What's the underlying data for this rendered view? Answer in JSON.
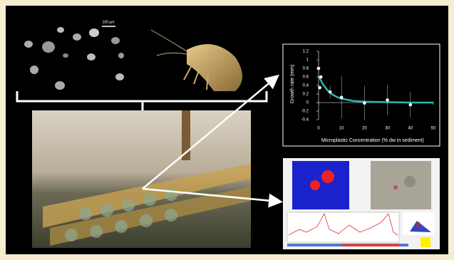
{
  "scale_bar_label": "100 µm",
  "chart_data": {
    "type": "scatter",
    "ylabel": "Growth rate (mm)",
    "xlabel": "Microplastic Concentration (% dw in sediment)",
    "xlim": [
      0,
      50
    ],
    "xticks": [
      0,
      10,
      20,
      30,
      40,
      50
    ],
    "ylim": [
      -0.4,
      1.2
    ],
    "yticks": [
      -0.4,
      -0.2,
      0,
      0.2,
      0.4,
      0.6,
      0.8,
      1,
      1.2
    ],
    "series": [
      {
        "color": "#ffffff",
        "x": [
          0,
          0.5,
          1,
          5,
          10,
          20,
          30,
          40
        ],
        "values": [
          0.8,
          0.35,
          0.6,
          0.25,
          0.12,
          -0.01,
          0.06,
          -0.05
        ],
        "errors": [
          0.4,
          null,
          null,
          0.15,
          0.5,
          0.4,
          0.35,
          0.3
        ]
      },
      {
        "color": "#2ab7b7",
        "x": [
          0,
          2,
          4,
          6,
          8,
          10,
          15,
          20,
          30,
          40,
          50
        ],
        "values": [
          0.62,
          0.42,
          0.28,
          0.19,
          0.13,
          0.09,
          0.04,
          0.02,
          0.01,
          0,
          0
        ]
      }
    ]
  }
}
